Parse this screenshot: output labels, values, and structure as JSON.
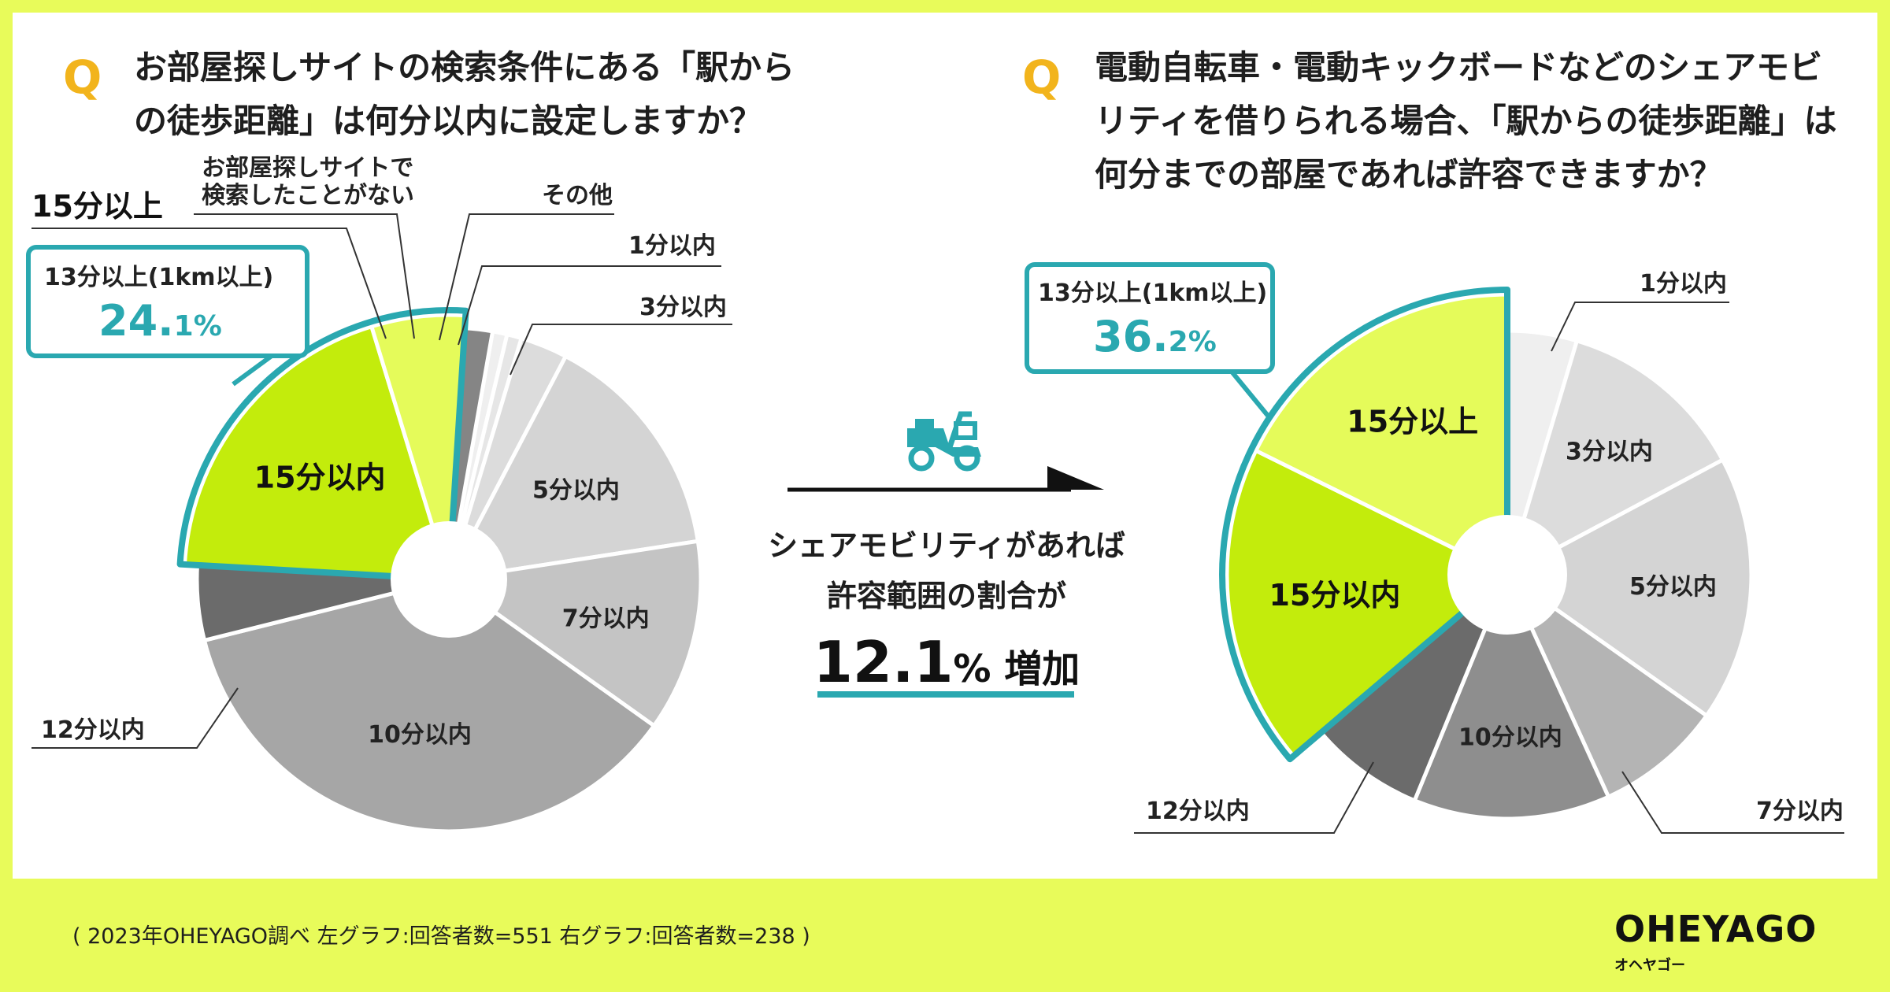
{
  "left": {
    "q_mark": "Q",
    "question_lines": [
      "お部屋探しサイトの検索条件にある「駅から",
      "の徒歩距離」は何分以内に設定しますか？"
    ],
    "group_label": "15分以上",
    "box_title": "13分以上(1km以上)",
    "box_pct_main": "24.",
    "box_pct_dec": "1%"
  },
  "right": {
    "q_mark": "Q",
    "question_lines": [
      "電動自転車・電動キックボードなどのシェアモビ",
      "リティを借りられる場合、「駅からの徒歩距離」は",
      "何分までの部屋であれば許容できますか？"
    ],
    "box_title": "13分以上(1km以上)",
    "box_pct_main": "36.",
    "box_pct_dec": "2%"
  },
  "middle": {
    "line1": "シェアモビリティがあれば",
    "line2": "許容範囲の割合が",
    "big_number": "12.1",
    "pct_suffix": "% 増加",
    "icon": "scooter-icon"
  },
  "footer": "( 2023年OHEYAGO調べ 左グラフ:回答者数=551 右グラフ:回答者数=238 )",
  "logo": {
    "main": "OHEYAGO",
    "sub": "オヘヤゴー"
  },
  "colors": {
    "accent_teal": "#2aa8b0",
    "highlight_lime": "#c3ec0c",
    "highlight_pale": "#e5fb5a",
    "q_orange": "#f2b41c",
    "background": "#e8fb5a"
  },
  "chart_data": [
    {
      "type": "pie",
      "title": "",
      "slices": [
        {
          "label": "その他",
          "value": 0.9,
          "color": "#efefef"
        },
        {
          "label": "1分以内",
          "value": 0.9,
          "color": "#e6e6e6"
        },
        {
          "label": "3分以内",
          "value": 2.9,
          "color": "#dcdcdc"
        },
        {
          "label": "5分以内",
          "value": 14.3,
          "color": "#d4d4d4"
        },
        {
          "label": "7分以内",
          "value": 11.8,
          "color": "#c4c4c4"
        },
        {
          "label": "10分以内",
          "value": 34.8,
          "color": "#a6a6a6"
        },
        {
          "label": "12分以内",
          "value": 4.6,
          "color": "#6b6b6b"
        },
        {
          "label": "15分以内",
          "value": 18.6,
          "color": "#c3ec0c"
        },
        {
          "label": "15分以上",
          "value": 5.5,
          "color": "#e5fb5a"
        },
        {
          "label": "お部屋探しサイトで検索したことがない",
          "value": 1.7,
          "color": "#858585"
        }
      ]
    },
    {
      "type": "pie",
      "title": "",
      "slices": [
        {
          "label": "1分以内",
          "value": 4.6,
          "color": "#efefef"
        },
        {
          "label": "3分以内",
          "value": 12.6,
          "color": "#dcdcdc"
        },
        {
          "label": "5分以内",
          "value": 17.6,
          "color": "#d4d4d4"
        },
        {
          "label": "7分以内",
          "value": 8.4,
          "color": "#b4b4b4"
        },
        {
          "label": "10分以内",
          "value": 13.0,
          "color": "#8e8e8e"
        },
        {
          "label": "12分以内",
          "value": 7.6,
          "color": "#6b6b6b"
        },
        {
          "label": "15分以内",
          "value": 18.5,
          "color": "#c3ec0c"
        },
        {
          "label": "15分以上",
          "value": 17.7,
          "color": "#e5fb5a"
        }
      ]
    }
  ]
}
